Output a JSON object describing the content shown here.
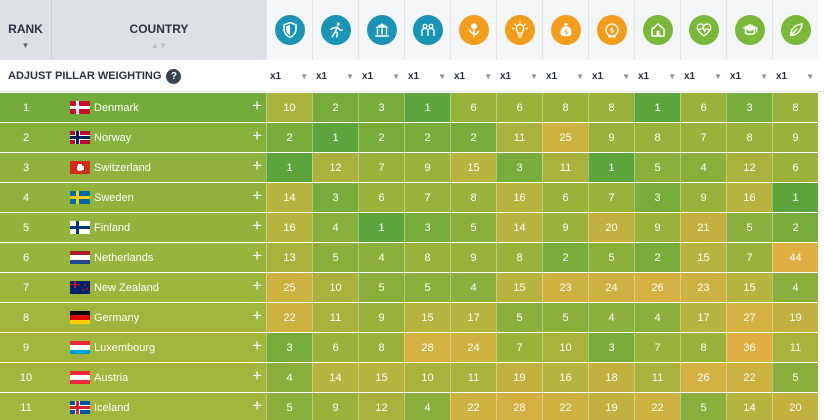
{
  "header": {
    "rank_label": "RANK",
    "country_label": "COUNTRY",
    "rank_sort": "▼",
    "country_sort": "▲▼"
  },
  "pillars": [
    {
      "icon": "shield-icon",
      "color": "#1a94b4"
    },
    {
      "icon": "runner-icon",
      "color": "#1a94b4"
    },
    {
      "icon": "bank-icon",
      "color": "#1a94b4"
    },
    {
      "icon": "people-icon",
      "color": "#1a94b4"
    },
    {
      "icon": "coin-plant-icon",
      "color": "#f29e1c"
    },
    {
      "icon": "lightbulb-icon",
      "color": "#f29e1c"
    },
    {
      "icon": "money-bag-icon",
      "color": "#f29e1c"
    },
    {
      "icon": "coin-hand-icon",
      "color": "#f29e1c"
    },
    {
      "icon": "house-icon",
      "color": "#7ab83a"
    },
    {
      "icon": "heart-pulse-icon",
      "color": "#7ab83a"
    },
    {
      "icon": "graduation-cap-icon",
      "color": "#7ab83a"
    },
    {
      "icon": "leaf-icon",
      "color": "#7ab83a"
    }
  ],
  "weighting": {
    "label": "ADJUST PILLAR WEIGHTING",
    "help": "?",
    "values": [
      "x1",
      "x1",
      "x1",
      "x1",
      "x1",
      "x1",
      "x1",
      "x1",
      "x1",
      "x1",
      "x1",
      "x1"
    ],
    "caret": "▼"
  },
  "rows": [
    {
      "rank": "1",
      "country": "Denmark",
      "flag": "denmark",
      "row_color": "#74ac3b",
      "scores": [
        "10",
        "2",
        "3",
        "1",
        "6",
        "6",
        "8",
        "8",
        "1",
        "6",
        "3",
        "8"
      ]
    },
    {
      "rank": "2",
      "country": "Norway",
      "flag": "norway",
      "row_color": "#86b13d",
      "scores": [
        "2",
        "1",
        "2",
        "2",
        "2",
        "11",
        "25",
        "9",
        "8",
        "7",
        "8",
        "9"
      ]
    },
    {
      "rank": "3",
      "country": "Switzerland",
      "flag": "switzerland",
      "row_color": "#8eb23d",
      "scores": [
        "1",
        "12",
        "7",
        "9",
        "15",
        "3",
        "11",
        "1",
        "5",
        "4",
        "12",
        "6"
      ]
    },
    {
      "rank": "4",
      "country": "Sweden",
      "flag": "sweden",
      "row_color": "#8fb23d",
      "scores": [
        "14",
        "3",
        "6",
        "7",
        "8",
        "16",
        "6",
        "7",
        "3",
        "9",
        "16",
        "1"
      ]
    },
    {
      "rank": "5",
      "country": "Finland",
      "flag": "finland",
      "row_color": "#94b33d",
      "scores": [
        "16",
        "4",
        "1",
        "3",
        "5",
        "14",
        "9",
        "20",
        "9",
        "21",
        "5",
        "2"
      ]
    },
    {
      "rank": "6",
      "country": "Netherlands",
      "flag": "netherlands",
      "row_color": "#98b43d",
      "scores": [
        "13",
        "5",
        "4",
        "8",
        "9",
        "8",
        "2",
        "5",
        "2",
        "15",
        "7",
        "44"
      ]
    },
    {
      "rank": "7",
      "country": "New Zealand",
      "flag": "newzealand",
      "row_color": "#9db53d",
      "scores": [
        "25",
        "10",
        "5",
        "5",
        "4",
        "15",
        "23",
        "24",
        "26",
        "23",
        "15",
        "4"
      ]
    },
    {
      "rank": "8",
      "country": "Germany",
      "flag": "germany",
      "row_color": "#9fb53d",
      "scores": [
        "22",
        "11",
        "9",
        "15",
        "17",
        "5",
        "5",
        "4",
        "4",
        "17",
        "27",
        "19"
      ]
    },
    {
      "rank": "9",
      "country": "Luxembourg",
      "flag": "luxembourg",
      "row_color": "#a1b63d",
      "scores": [
        "3",
        "6",
        "8",
        "28",
        "24",
        "7",
        "10",
        "3",
        "7",
        "8",
        "36",
        "11"
      ]
    },
    {
      "rank": "10",
      "country": "Austria",
      "flag": "austria",
      "row_color": "#a2b63d",
      "scores": [
        "4",
        "14",
        "15",
        "10",
        "11",
        "19",
        "16",
        "18",
        "11",
        "26",
        "22",
        "5"
      ]
    },
    {
      "rank": "11",
      "country": "Iceland",
      "flag": "iceland",
      "row_color": "#a2b63d",
      "scores": [
        "5",
        "9",
        "12",
        "4",
        "22",
        "28",
        "22",
        "19",
        "22",
        "5",
        "14",
        "20"
      ]
    }
  ],
  "plus_symbol": "+"
}
